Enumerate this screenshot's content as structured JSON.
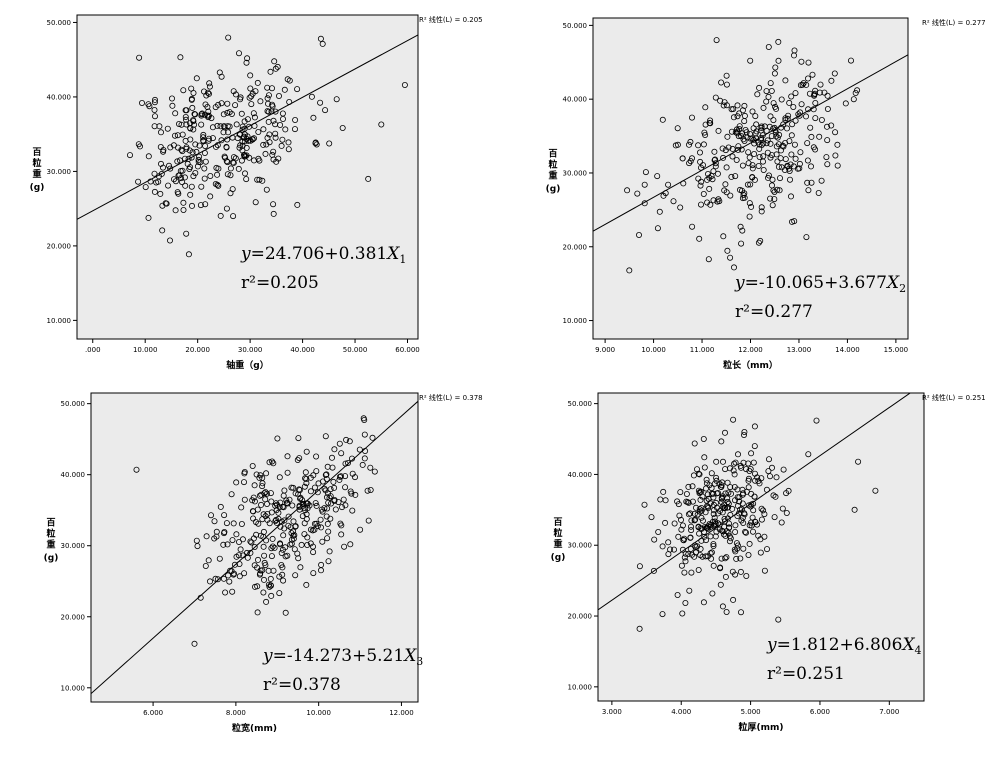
{
  "chart_data": [
    {
      "type": "scatter",
      "xlabel": "轴重（g）",
      "ylabel": "百粒重(g)",
      "xlim": [
        -3.0,
        62.0
      ],
      "ylim": [
        7.5,
        51.0
      ],
      "xticks": [
        0,
        10,
        20,
        30,
        40,
        50,
        60
      ],
      "xtick_labels": [
        ".000",
        "10.000",
        "20.000",
        "30.000",
        "40.000",
        "50.000",
        "60.000"
      ],
      "yticks": [
        10,
        20,
        30,
        40,
        50
      ],
      "ytick_labels": [
        "10.000",
        "20.000",
        "30.000",
        "40.000",
        "50.000"
      ],
      "legend": "R² 线性(L) = 0.205",
      "equation_prefix": "y=24.706+0.381X",
      "equation_sub": "1",
      "r2_label": "r²=0.205",
      "fit": {
        "intercept": 24.706,
        "slope": 0.381
      },
      "points": {
        "center": [
          24,
          34.5
        ],
        "spread": [
          8.5,
          6
        ],
        "count": 330,
        "seed": 11,
        "xrange": [
          7,
          60
        ],
        "yrange": [
          16,
          48
        ]
      },
      "outliers": [
        [
          59.5,
          41.6
        ],
        [
          55,
          36.3
        ],
        [
          52.5,
          29
        ],
        [
          43.5,
          47.8
        ],
        [
          46.5,
          39.7
        ],
        [
          39,
          25.5
        ],
        [
          34.5,
          24.3
        ]
      ]
    },
    {
      "type": "scatter",
      "xlabel": "粒长（mm）",
      "ylabel": "百粒重(g)",
      "xlim": [
        8.75,
        15.25
      ],
      "ylim": [
        7.5,
        51.0
      ],
      "xticks": [
        9,
        10,
        11,
        12,
        13,
        14,
        15
      ],
      "xtick_labels": [
        "9.000",
        "10.000",
        "11.000",
        "12.000",
        "13.000",
        "14.000",
        "15.000"
      ],
      "yticks": [
        10,
        20,
        30,
        40,
        50
      ],
      "ytick_labels": [
        "10.000",
        "20.000",
        "30.000",
        "40.000",
        "50.000"
      ],
      "legend": "R² 线性(L) = 0.277",
      "equation_prefix": "y=-10.065+3.677X",
      "equation_sub": "2",
      "r2_label": "r²=0.277",
      "fit": {
        "intercept": -10.065,
        "slope": 3.677
      },
      "points": {
        "center": [
          12.1,
          33.5
        ],
        "spread": [
          0.9,
          6.5
        ],
        "count": 330,
        "seed": 23,
        "xrange": [
          9.4,
          14.2
        ],
        "yrange": [
          16,
          48
        ]
      },
      "outliers": [
        [
          9.5,
          16.8
        ],
        [
          9.7,
          21.6
        ],
        [
          13.8,
          31
        ],
        [
          14.2,
          41.2
        ],
        [
          11.3,
          48
        ],
        [
          12.2,
          20.8
        ]
      ]
    },
    {
      "type": "scatter",
      "xlabel": "粒宽(mm)",
      "ylabel": "百粒重(g)",
      "xlim": [
        4.5,
        12.4
      ],
      "ylim": [
        8.0,
        51.5
      ],
      "xticks": [
        6,
        8,
        10,
        12
      ],
      "xtick_labels": [
        "6.000",
        "8.000",
        "10.000",
        "12.000"
      ],
      "yticks": [
        10,
        20,
        30,
        40,
        50
      ],
      "ytick_labels": [
        "10.000",
        "20.000",
        "30.000",
        "40.000",
        "50.000"
      ],
      "legend": "R² 线性(L) = 0.378",
      "equation_prefix": "y=-14.273+5.21X",
      "equation_sub": "3",
      "r2_label": "r²=0.378",
      "fit": {
        "intercept": -14.273,
        "slope": 5.21
      },
      "points": {
        "center": [
          9.2,
          34
        ],
        "spread": [
          0.9,
          6
        ],
        "count": 330,
        "seed": 37,
        "xrange": [
          6.9,
          11.4
        ],
        "yrange": [
          16,
          48
        ]
      },
      "outliers": [
        [
          5.6,
          40.7
        ],
        [
          7.0,
          16.2
        ],
        [
          11.3,
          45.2
        ],
        [
          11.1,
          47.7
        ],
        [
          7.4,
          34.3
        ]
      ]
    },
    {
      "type": "scatter",
      "xlabel": "粒厚(mm)",
      "ylabel": "百粒重(g)",
      "xlim": [
        2.8,
        7.5
      ],
      "ylim": [
        8.0,
        51.5
      ],
      "xticks": [
        3,
        4,
        5,
        6,
        7
      ],
      "xtick_labels": [
        "3.000",
        "4.000",
        "5.000",
        "6.000",
        "7.000"
      ],
      "yticks": [
        10,
        20,
        30,
        40,
        50
      ],
      "ytick_labels": [
        "10.000",
        "20.000",
        "30.000",
        "40.000",
        "50.000"
      ],
      "legend": "R² 线性(L) = 0.251",
      "equation_prefix": "y=1.812+6.806X",
      "equation_sub": "4",
      "r2_label": "r²=0.251",
      "fit": {
        "intercept": 1.812,
        "slope": 6.806
      },
      "points": {
        "center": [
          4.6,
          34
        ],
        "spread": [
          0.45,
          6
        ],
        "count": 330,
        "seed": 53,
        "xrange": [
          3.4,
          6.9
        ],
        "yrange": [
          16,
          48
        ]
      },
      "outliers": [
        [
          3.4,
          18.2
        ],
        [
          6.8,
          37.7
        ],
        [
          6.5,
          35
        ],
        [
          6.55,
          41.8
        ],
        [
          5.4,
          19.5
        ],
        [
          5.95,
          47.6
        ]
      ]
    }
  ]
}
